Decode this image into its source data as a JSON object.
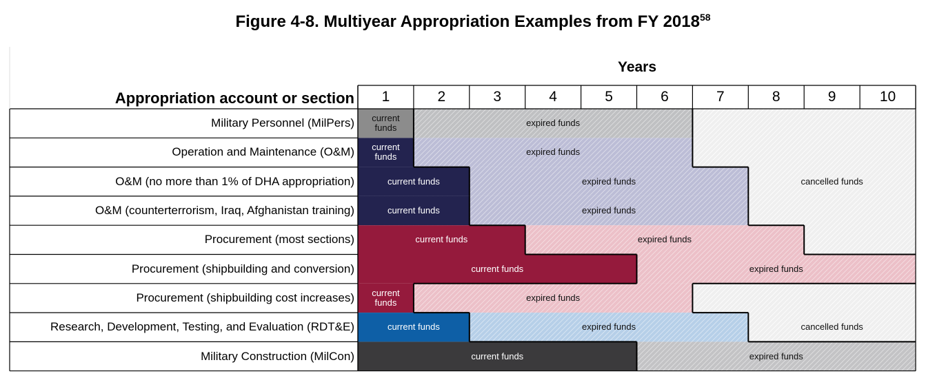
{
  "title": "Figure 4-8. Multiyear Appropriation Examples from FY 2018",
  "title_footnote": "58",
  "years_label": "Years",
  "header_label": "Appropriation account or section",
  "year_numbers": [
    "1",
    "2",
    "3",
    "4",
    "5",
    "6",
    "7",
    "8",
    "9",
    "10"
  ],
  "rows": [
    {
      "label": "Military Personnel (MilPers)"
    },
    {
      "label": "Operation and Maintenance (O&M)"
    },
    {
      "label": "O&M (no more than 1% of DHA appropriation)"
    },
    {
      "label": "O&M (counterterrorism, Iraq, Afghanistan training)"
    },
    {
      "label": "Procurement (most sections)"
    },
    {
      "label": "Procurement (shipbuilding and conversion)"
    },
    {
      "label": "Procurement (shipbuilding cost increases)"
    },
    {
      "label": "Research, Development, Testing, and Evaluation (RDT&E)"
    },
    {
      "label": "Military Construction (MilCon)"
    }
  ],
  "phase_labels": {
    "current_short": "current\nfunds",
    "current": "current funds",
    "expired": "expired funds",
    "cancelled": "cancelled funds"
  },
  "bars": [
    {
      "row": 0,
      "kind": "current",
      "from": 1,
      "to": 1,
      "text": "current\nfunds",
      "color": "#8c8c8c",
      "text_color": "dark"
    },
    {
      "row": 0,
      "kind": "expired",
      "from": 2,
      "to": 6,
      "text": "expired funds",
      "color": "#bfc0c2",
      "text_color": "dark"
    },
    {
      "row": 1,
      "kind": "current",
      "from": 1,
      "to": 1,
      "text": "current\nfunds",
      "color": "#23234f",
      "text_color": "light"
    },
    {
      "row": 1,
      "kind": "expired",
      "from": 2,
      "to": 6,
      "text": "expired funds",
      "color": "#bcbdd6",
      "text_color": "dark"
    },
    {
      "row": 2,
      "kind": "current",
      "from": 1,
      "to": 2,
      "text": "current funds",
      "color": "#23234f",
      "text_color": "light"
    },
    {
      "row": 2,
      "kind": "expired",
      "from": 3,
      "to": 7,
      "text": "expired funds",
      "color": "#bcbdd6",
      "text_color": "dark"
    },
    {
      "row": 3,
      "kind": "current",
      "from": 1,
      "to": 2,
      "text": "current funds",
      "color": "#23234f",
      "text_color": "light"
    },
    {
      "row": 3,
      "kind": "expired",
      "from": 3,
      "to": 7,
      "text": "expired funds",
      "color": "#bcbdd6",
      "text_color": "dark"
    },
    {
      "row": 4,
      "kind": "current",
      "from": 1,
      "to": 3,
      "text": "current funds",
      "color": "#951a3c",
      "text_color": "light"
    },
    {
      "row": 4,
      "kind": "expired",
      "from": 4,
      "to": 8,
      "text": "expired funds",
      "color": "#ecc0c8",
      "text_color": "dark"
    },
    {
      "row": 5,
      "kind": "current",
      "from": 1,
      "to": 5,
      "text": "current funds",
      "color": "#951a3c",
      "text_color": "light"
    },
    {
      "row": 5,
      "kind": "expired",
      "from": 6,
      "to": 10,
      "text": "expired funds",
      "color": "#ecc0c8",
      "text_color": "dark"
    },
    {
      "row": 6,
      "kind": "current",
      "from": 1,
      "to": 1,
      "text": "current\nfunds",
      "color": "#951a3c",
      "text_color": "light"
    },
    {
      "row": 6,
      "kind": "expired",
      "from": 2,
      "to": 6,
      "text": "expired funds",
      "color": "#ecc0c8",
      "text_color": "dark"
    },
    {
      "row": 7,
      "kind": "current",
      "from": 1,
      "to": 2,
      "text": "current funds",
      "color": "#0e5fa6",
      "text_color": "light"
    },
    {
      "row": 7,
      "kind": "expired",
      "from": 3,
      "to": 7,
      "text": "expired funds",
      "color": "#b6cfe8",
      "text_color": "dark"
    },
    {
      "row": 8,
      "kind": "current",
      "from": 1,
      "to": 5,
      "text": "current funds",
      "color": "#3b3a3c",
      "text_color": "light"
    },
    {
      "row": 8,
      "kind": "expired",
      "from": 6,
      "to": 10,
      "text": "expired funds",
      "color": "#c3c3c5",
      "text_color": "dark"
    }
  ],
  "cancelled_areas": [
    {
      "label": "cancelled funds",
      "labeled_row": 2
    },
    {
      "label": "cancelled funds",
      "labeled_row": 7
    }
  ],
  "colors": {
    "cancelled_fill": "#efefef",
    "grid_line": "#000000",
    "hatch": "#ffffff"
  }
}
